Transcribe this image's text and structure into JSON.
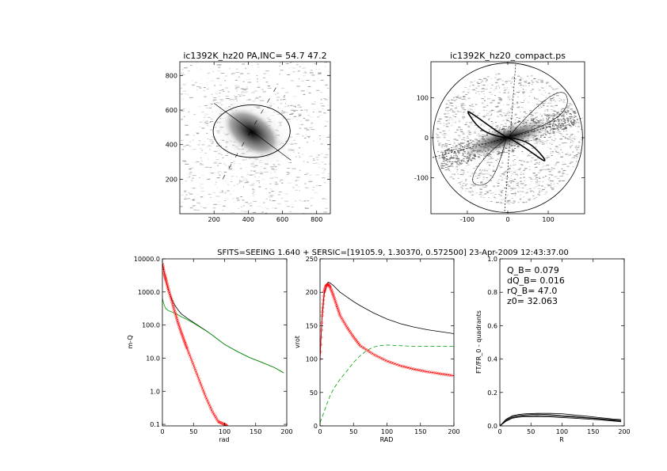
{
  "colors": {
    "model_red": "#ff0000",
    "model_green": "#00a000",
    "data_black": "#000000",
    "image_gray": "#808080"
  },
  "header": {
    "caption": "SFITS=SEEING 1.640 + SERSIC=[19105.9, 1.30370, 0.572500]  23-Apr-2009 12:43:37.00"
  },
  "chart_data": [
    {
      "type": "heatmap",
      "title": "ic1392K_hz20 PA,INC= 54.7 47.2",
      "xlim": [
        0,
        880
      ],
      "ylim": [
        0,
        880
      ],
      "xticks": [
        "200",
        "400",
        "600",
        "800"
      ],
      "yticks": [
        "200",
        "400",
        "600",
        "800"
      ],
      "xtick_values": [
        200,
        400,
        600,
        800
      ],
      "ytick_values": [
        200,
        400,
        600,
        800
      ],
      "ellipse": {
        "center": [
          420,
          478
        ],
        "semi_major": 225,
        "semi_minor": 152,
        "pa_deg": 54.7
      },
      "major_axis_line": [
        [
          200,
          640
        ],
        [
          650,
          310
        ]
      ]
    },
    {
      "type": "scatter",
      "title": "ic1392K_hz20_compact.ps",
      "xlim": [
        -190,
        190
      ],
      "ylim": [
        -190,
        190
      ],
      "xticks": [
        "-100",
        "0",
        "100"
      ],
      "yticks": [
        "-100",
        "0",
        "100"
      ],
      "xtick_values": [
        -100,
        0,
        100
      ],
      "ytick_values": [
        -100,
        0,
        100
      ],
      "circle_radius": 185
    },
    {
      "type": "line",
      "title": "",
      "xlabel": "rad",
      "ylabel": "m-Q",
      "yscale": "log",
      "xlim": [
        0,
        200
      ],
      "ylim": [
        0.09,
        10000
      ],
      "xticks": [
        "0",
        "50",
        "100",
        "150",
        "200"
      ],
      "xtick_values": [
        0,
        50,
        100,
        150,
        200
      ],
      "yticks": [
        "0.1",
        "1.0",
        "10.0",
        "100.0",
        "1000.0",
        "10000.0"
      ],
      "ytick_values": [
        0.1,
        1,
        10,
        100,
        1000,
        10000
      ],
      "series": [
        {
          "color": "#000000",
          "x": [
            0,
            2,
            5,
            10,
            15,
            20,
            25,
            30,
            40,
            50,
            60,
            70,
            80,
            90,
            100,
            120,
            140,
            160,
            180,
            195
          ],
          "y": [
            7500,
            4800,
            2500,
            1100,
            620,
            400,
            290,
            220,
            160,
            120,
            90,
            68,
            50,
            36,
            26,
            16,
            10.5,
            7.5,
            5.2,
            3.6
          ]
        },
        {
          "color": "#00a000",
          "x": [
            0,
            2,
            5,
            10,
            15,
            20,
            25,
            30,
            40,
            50,
            60,
            70,
            80,
            90,
            100,
            120,
            140,
            160,
            180,
            195
          ],
          "y": [
            650,
            450,
            320,
            270,
            250,
            230,
            205,
            180,
            145,
            115,
            88,
            67,
            50,
            36,
            26,
            16,
            10.5,
            7.5,
            5.2,
            3.6
          ]
        },
        {
          "color": "#ff0000",
          "marker": "diamond",
          "x": [
            0,
            3,
            6,
            10,
            15,
            20,
            25,
            30,
            35,
            40,
            50,
            60,
            70,
            80,
            90,
            100,
            104
          ],
          "y": [
            7000,
            3600,
            2200,
            1150,
            540,
            250,
            120,
            62,
            34,
            19,
            6.2,
            2.0,
            0.66,
            0.25,
            0.12,
            0.1,
            0.09
          ]
        }
      ]
    },
    {
      "type": "line",
      "title": "",
      "xlabel": "RAD",
      "ylabel": "vrot",
      "xlim": [
        0,
        200
      ],
      "ylim": [
        0,
        250
      ],
      "xticks": [
        "0",
        "50",
        "100",
        "150",
        "200"
      ],
      "xtick_values": [
        0,
        50,
        100,
        150,
        200
      ],
      "yticks": [
        "0",
        "50",
        "100",
        "150",
        "200",
        "250"
      ],
      "ytick_values": [
        0,
        50,
        100,
        150,
        200,
        250
      ],
      "series": [
        {
          "color": "#000000",
          "x": [
            0,
            3,
            6,
            9,
            12,
            15,
            20,
            30,
            40,
            50,
            60,
            80,
            100,
            120,
            140,
            160,
            180,
            200
          ],
          "y": [
            100,
            160,
            195,
            210,
            215,
            214,
            210,
            200,
            193,
            186,
            180,
            169,
            160,
            153,
            148,
            144,
            141,
            138
          ]
        },
        {
          "color": "#00a000",
          "dashed": true,
          "x": [
            0,
            5,
            10,
            15,
            20,
            30,
            40,
            50,
            60,
            70,
            80,
            90,
            100,
            120,
            140,
            160,
            180,
            200
          ],
          "y": [
            5,
            18,
            32,
            45,
            55,
            70,
            82,
            95,
            105,
            113,
            118,
            120,
            121,
            120,
            119,
            119,
            119,
            119
          ]
        },
        {
          "color": "#ff0000",
          "marker": "diamond",
          "x": [
            0,
            3,
            6,
            9,
            12,
            15,
            20,
            25,
            30,
            40,
            50,
            60,
            80,
            100,
            120,
            140,
            160,
            180,
            200
          ],
          "y": [
            100,
            165,
            200,
            210,
            212,
            208,
            195,
            180,
            165,
            148,
            133,
            120,
            107,
            97,
            90,
            85,
            81,
            78,
            75
          ]
        }
      ]
    },
    {
      "type": "line",
      "title": "",
      "xlabel": "R",
      "ylabel": "FT/FR_0 - quadrants",
      "xlim": [
        0,
        200
      ],
      "ylim": [
        0,
        1
      ],
      "xticks": [
        "0",
        "50",
        "100",
        "150",
        "200"
      ],
      "xtick_values": [
        0,
        50,
        100,
        150,
        200
      ],
      "yticks": [
        "0.0",
        "0.2",
        "0.4",
        "0.6",
        "0.8",
        "1.0"
      ],
      "ytick_values": [
        0,
        0.2,
        0.4,
        0.6,
        0.8,
        1.0
      ],
      "annotations": [
        "Q_B=  0.079",
        "dQ_B=  0.016",
        "rQ_B=   47.0",
        "z0= 32.063"
      ],
      "series": [
        {
          "color": "#000000",
          "x": [
            0,
            10,
            20,
            30,
            40,
            60,
            80,
            100,
            120,
            140,
            160,
            180,
            195
          ],
          "y": [
            0,
            0.04,
            0.06,
            0.068,
            0.072,
            0.075,
            0.075,
            0.073,
            0.065,
            0.058,
            0.05,
            0.042,
            0.038
          ]
        },
        {
          "color": "#000000",
          "x": [
            0,
            10,
            20,
            30,
            40,
            60,
            80,
            100,
            120,
            140,
            160,
            180,
            195
          ],
          "y": [
            0,
            0.035,
            0.055,
            0.062,
            0.066,
            0.07,
            0.068,
            0.062,
            0.056,
            0.05,
            0.044,
            0.037,
            0.032
          ]
        },
        {
          "color": "#000000",
          "x": [
            0,
            10,
            20,
            30,
            40,
            60,
            80,
            100,
            120,
            140,
            160,
            180,
            195
          ],
          "y": [
            0,
            0.03,
            0.05,
            0.056,
            0.06,
            0.062,
            0.06,
            0.056,
            0.052,
            0.047,
            0.041,
            0.034,
            0.028
          ]
        },
        {
          "color": "#000000",
          "x": [
            0,
            10,
            20,
            30,
            40,
            60,
            80,
            100,
            120,
            140,
            160,
            180,
            195
          ],
          "y": [
            0,
            0.028,
            0.046,
            0.052,
            0.055,
            0.056,
            0.054,
            0.05,
            0.046,
            0.041,
            0.036,
            0.03,
            0.024
          ]
        }
      ]
    }
  ]
}
